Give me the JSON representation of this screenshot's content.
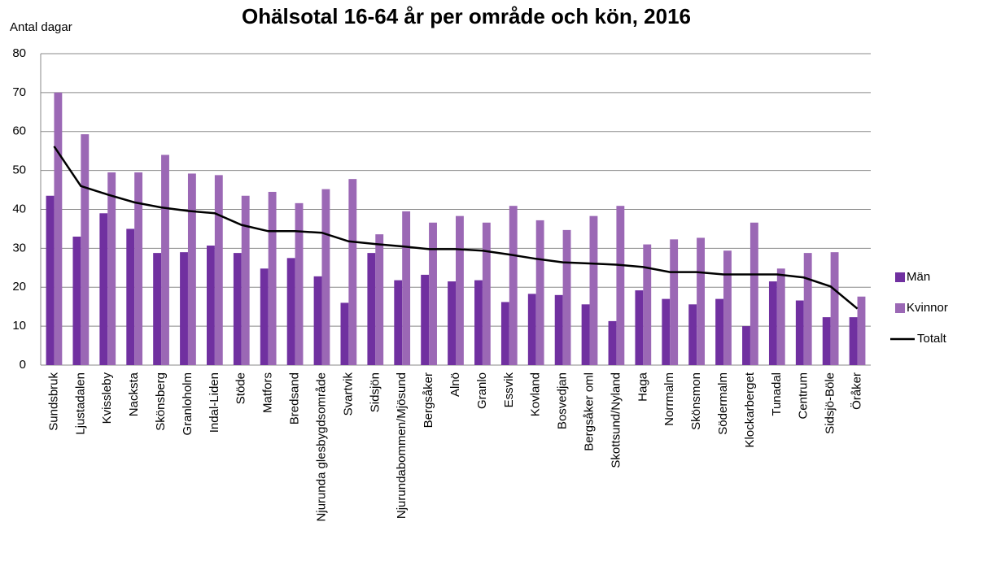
{
  "chart_data": {
    "type": "bar_line",
    "title": "Ohälsotal 16-64 år per område och kön, 2016",
    "y_label": "Antal dagar",
    "categories": [
      "Sundsbruk",
      "Ljustadalen",
      "Kvissleby",
      "Nacksta",
      "Skönsberg",
      "Granloholm",
      "Indal-Liden",
      "Stöde",
      "Matfors",
      "Bredsand",
      "Njurunda glesbygdsområde",
      "Svartvik",
      "Sidsjön",
      "Njurundabommen/Mjösund",
      "Bergsåker",
      "Alnö",
      "Granlo",
      "Essvik",
      "Kovland",
      "Bosvedjan",
      "Bergsåker oml",
      "Skottsund/Nyland",
      "Haga",
      "Norrmalm",
      "Skönsmon",
      "Södermalm",
      "Klockarberget",
      "Tunadal",
      "Centrum",
      "Sidsjö-Böle",
      "Öråker"
    ],
    "series": [
      {
        "name": "Män",
        "type": "bar",
        "color": "#7030a0",
        "values": [
          43.5,
          33,
          39,
          35,
          28.8,
          29,
          30.7,
          28.8,
          24.8,
          27.5,
          22.8,
          16,
          28.8,
          21.8,
          23.2,
          21.5,
          21.8,
          16.2,
          18.3,
          18,
          15.6,
          11.3,
          19.2,
          17,
          15.6,
          17,
          10,
          21.5,
          16.6,
          12.3,
          12.3
        ]
      },
      {
        "name": "Kvinnor",
        "type": "bar",
        "color": "#9b68b5",
        "values": [
          70,
          59.3,
          49.5,
          49.5,
          54,
          49.2,
          48.8,
          43.5,
          44.5,
          41.6,
          45.2,
          47.8,
          33.6,
          39.5,
          36.6,
          38.3,
          36.6,
          40.9,
          37.2,
          34.7,
          38.3,
          40.9,
          31,
          32.3,
          32.7,
          29.4,
          36.6,
          24.8,
          28.8,
          29,
          17.6
        ]
      },
      {
        "name": "Totalt",
        "type": "line",
        "color": "#000000",
        "values": [
          56.2,
          46,
          43.8,
          41.8,
          40.5,
          39.6,
          39,
          36,
          34.4,
          34.4,
          34,
          31.8,
          31.1,
          30.5,
          29.8,
          29.8,
          29.4,
          28.4,
          27.3,
          26.4,
          26.1,
          25.8,
          25.2,
          23.9,
          23.9,
          23.3,
          23.3,
          23.3,
          22.5,
          20.2,
          14.5
        ]
      }
    ],
    "ylim": [
      0,
      80
    ],
    "yticks": [
      0,
      10,
      20,
      30,
      40,
      50,
      60,
      70,
      80
    ],
    "grid": true,
    "legend": "right"
  }
}
